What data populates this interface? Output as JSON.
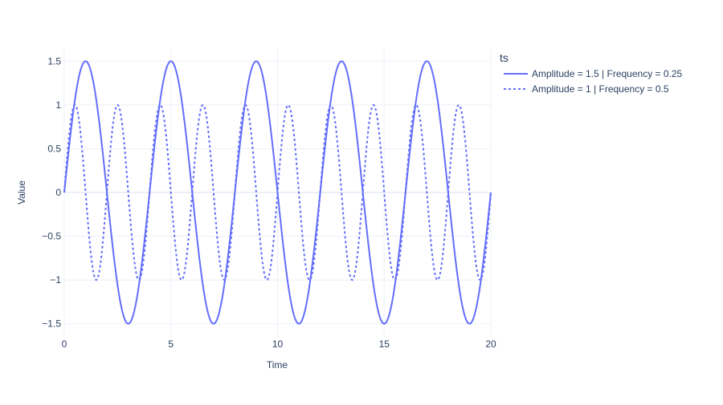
{
  "chart_data": {
    "type": "line",
    "xlabel": "Time",
    "ylabel": "Value",
    "xlim": [
      0,
      20
    ],
    "ylim": [
      -1.65,
      1.65
    ],
    "x_ticks": [
      0,
      5,
      10,
      15,
      20
    ],
    "x_tick_labels": [
      "0",
      "5",
      "10",
      "15",
      "20"
    ],
    "y_ticks": [
      -1.5,
      -1,
      -0.5,
      0,
      0.5,
      1,
      1.5
    ],
    "y_tick_labels": [
      "−1.5",
      "−1",
      "−0.5",
      "0",
      "0.5",
      "1",
      "1.5"
    ],
    "grid": true,
    "legend": {
      "title": "ts",
      "placement": "top-right, outside plot"
    },
    "series": [
      {
        "name": "Amplitude = 1.5 | Frequency = 0.25",
        "amplitude": 1.5,
        "frequency": 0.25,
        "function": "amplitude * sin(2 * pi * frequency * t)",
        "x_range": [
          0,
          20
        ],
        "line_style": "solid",
        "color": "#636efa"
      },
      {
        "name": "Amplitude = 1 | Frequency = 0.5",
        "amplitude": 1,
        "frequency": 0.5,
        "function": "amplitude * sin(2 * pi * frequency * t)",
        "x_range": [
          0,
          20
        ],
        "line_style": "dotted",
        "color": "#636efa"
      }
    ]
  },
  "colors": {
    "background": "#ffffff",
    "grid": "#ebf0f8",
    "text": "#2a3f5f"
  }
}
